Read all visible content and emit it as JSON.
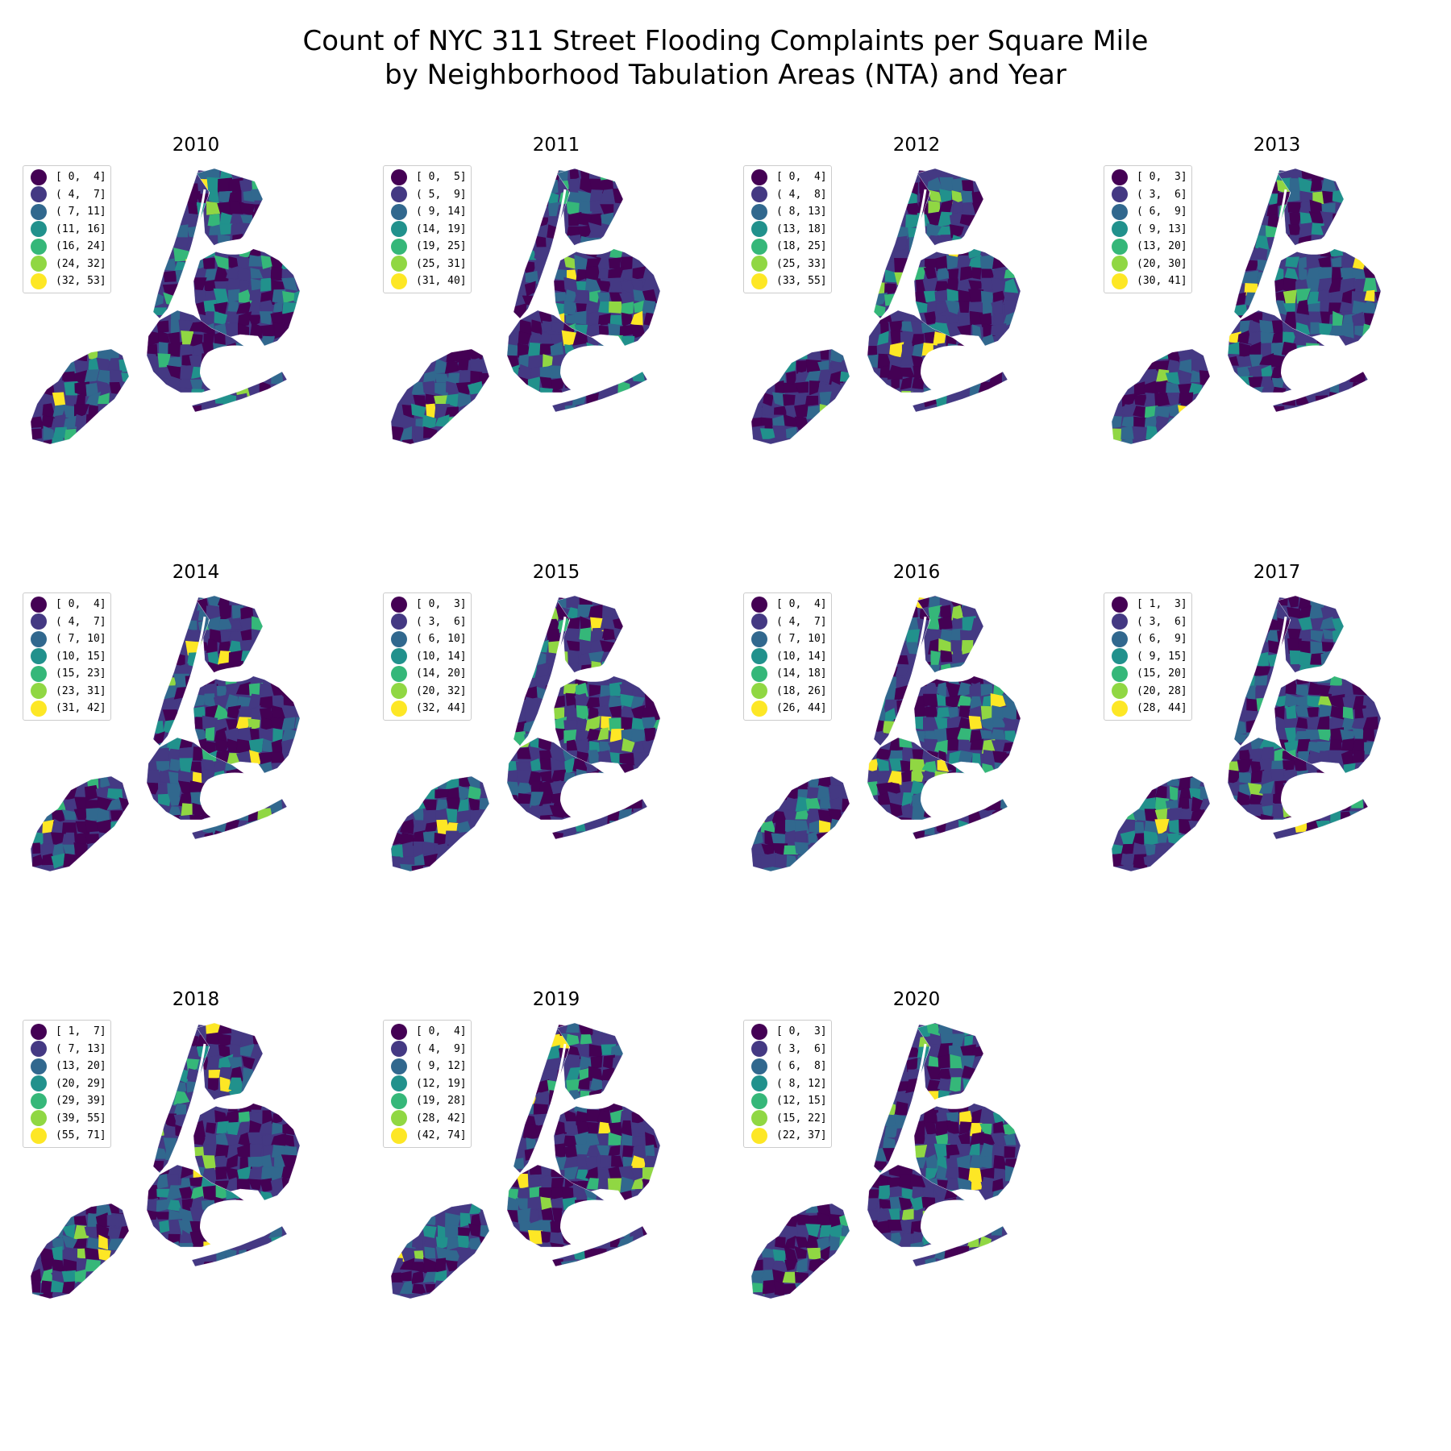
{
  "title": {
    "line1": "Count of NYC 311 Street Flooding Complaints per Square Mile",
    "line2": "by Neighborhood Tabulation Areas (NTA) and Year"
  },
  "palette": [
    "#440154",
    "#443983",
    "#31688e",
    "#21918c",
    "#35b779",
    "#90d743",
    "#fde725"
  ],
  "panels": [
    {
      "year": "2010",
      "bins": [
        "[ 0,  4]",
        "( 4,  7]",
        "( 7, 11]",
        "(11, 16]",
        "(16, 24]",
        "(24, 32]",
        "(32, 53]"
      ]
    },
    {
      "year": "2011",
      "bins": [
        "[ 0,  5]",
        "( 5,  9]",
        "( 9, 14]",
        "(14, 19]",
        "(19, 25]",
        "(25, 31]",
        "(31, 40]"
      ]
    },
    {
      "year": "2012",
      "bins": [
        "[ 0,  4]",
        "( 4,  8]",
        "( 8, 13]",
        "(13, 18]",
        "(18, 25]",
        "(25, 33]",
        "(33, 55]"
      ]
    },
    {
      "year": "2013",
      "bins": [
        "[ 0,  3]",
        "( 3,  6]",
        "( 6,  9]",
        "( 9, 13]",
        "(13, 20]",
        "(20, 30]",
        "(30, 41]"
      ]
    },
    {
      "year": "2014",
      "bins": [
        "[ 0,  4]",
        "( 4,  7]",
        "( 7, 10]",
        "(10, 15]",
        "(15, 23]",
        "(23, 31]",
        "(31, 42]"
      ]
    },
    {
      "year": "2015",
      "bins": [
        "[ 0,  3]",
        "( 3,  6]",
        "( 6, 10]",
        "(10, 14]",
        "(14, 20]",
        "(20, 32]",
        "(32, 44]"
      ]
    },
    {
      "year": "2016",
      "bins": [
        "[ 0,  4]",
        "( 4,  7]",
        "( 7, 10]",
        "(10, 14]",
        "(14, 18]",
        "(18, 26]",
        "(26, 44]"
      ]
    },
    {
      "year": "2017",
      "bins": [
        "[ 1,  3]",
        "( 3,  6]",
        "( 6,  9]",
        "( 9, 15]",
        "(15, 20]",
        "(20, 28]",
        "(28, 44]"
      ]
    },
    {
      "year": "2018",
      "bins": [
        "[ 1,  7]",
        "( 7, 13]",
        "(13, 20]",
        "(20, 29]",
        "(29, 39]",
        "(39, 55]",
        "(55, 71]"
      ]
    },
    {
      "year": "2019",
      "bins": [
        "[ 0,  4]",
        "( 4,  9]",
        "( 9, 12]",
        "(12, 19]",
        "(19, 28]",
        "(28, 42]",
        "(42, 74]"
      ]
    },
    {
      "year": "2020",
      "bins": [
        "[ 0,  3]",
        "( 3,  6]",
        "( 6,  8]",
        "( 8, 12]",
        "(12, 15]",
        "(15, 22]",
        "(22, 37]"
      ]
    }
  ]
}
